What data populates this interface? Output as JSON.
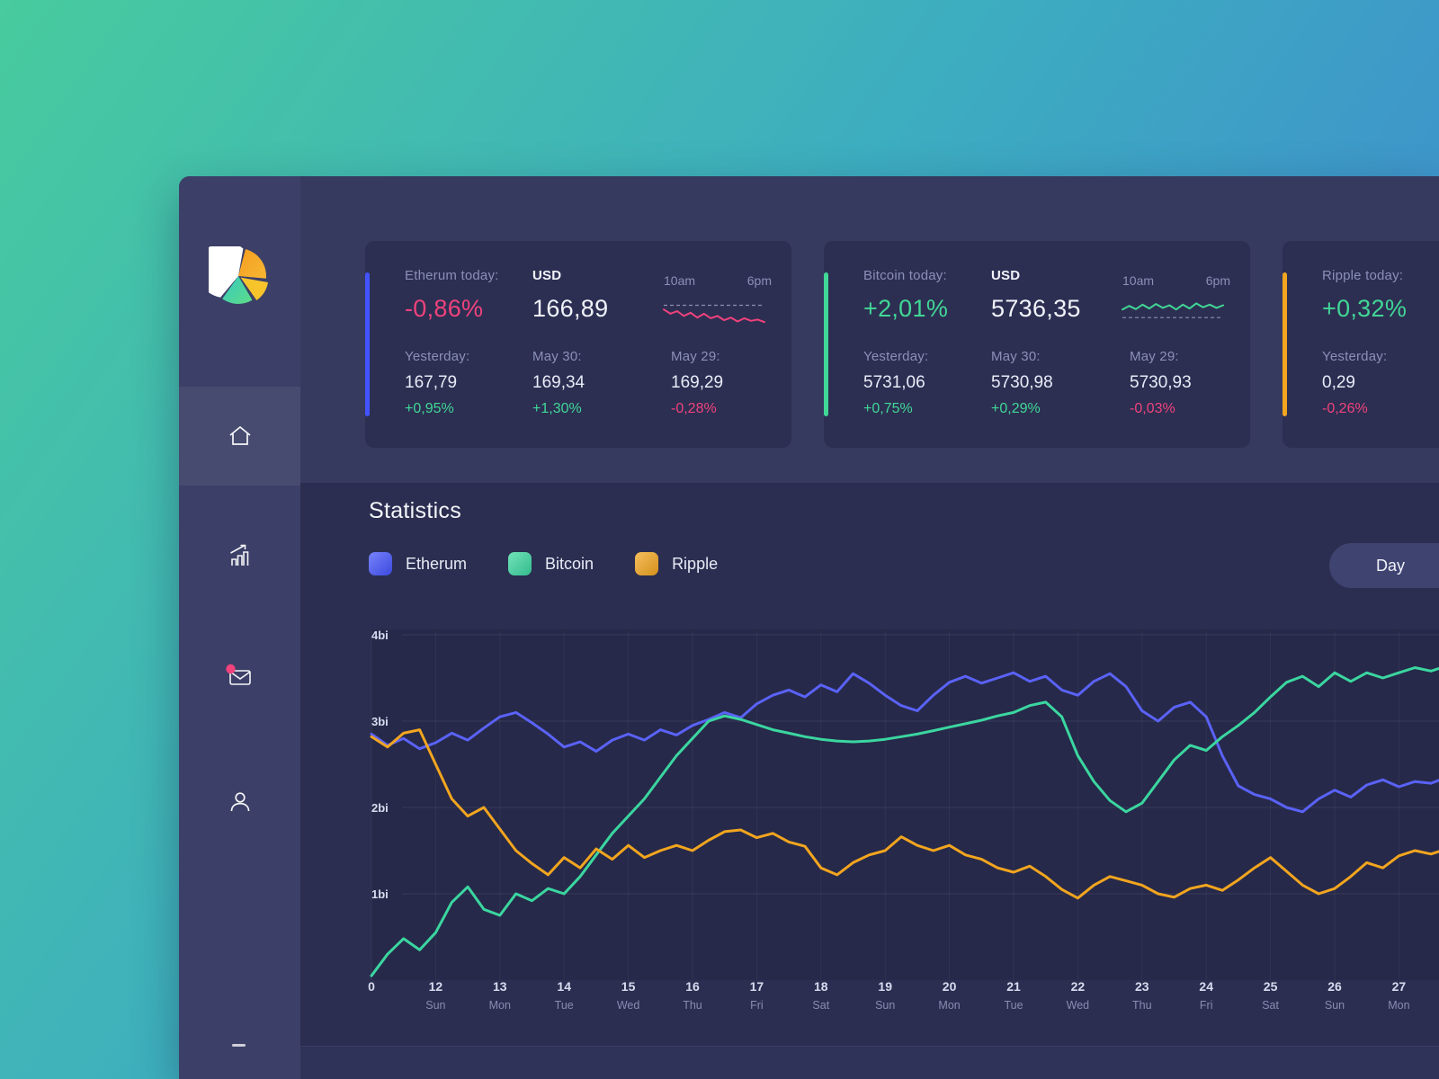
{
  "sidebar": {
    "items": [
      {
        "id": "home",
        "active": true
      },
      {
        "id": "stats",
        "active": false
      },
      {
        "id": "messages",
        "active": false,
        "has_notification": true
      },
      {
        "id": "profile",
        "active": false
      }
    ],
    "notification_color": "#f0427c"
  },
  "cards": [
    {
      "accent_color": "#4353fb",
      "title": "Etherum today:",
      "today_change": "-0,86%",
      "today_change_color": "#f0427c",
      "currency": "USD",
      "price": "166,89",
      "spark_start": "10am",
      "spark_end": "6pm",
      "spark": {
        "color": "#f0427c",
        "baseline": 0.68,
        "values": [
          0.55,
          0.42,
          0.5,
          0.35,
          0.45,
          0.3,
          0.42,
          0.28,
          0.35,
          0.22,
          0.3,
          0.18,
          0.28,
          0.2,
          0.24,
          0.16
        ]
      },
      "stats": [
        {
          "label": "Yesterday:",
          "value": "167,79",
          "change": "+0,95%",
          "change_color": "#41d796"
        },
        {
          "label": "May 30:",
          "value": "169,34",
          "change": "+1,30%",
          "change_color": "#41d796"
        },
        {
          "label": "May 29:",
          "value": "169,29",
          "change": "-0,28%",
          "change_color": "#f0427c"
        }
      ]
    },
    {
      "accent_color": "#41d796",
      "title": "Bitcoin today:",
      "today_change": "+2,01%",
      "today_change_color": "#41d796",
      "currency": "USD",
      "price": "5736,35",
      "spark_start": "10am",
      "spark_end": "6pm",
      "spark": {
        "color": "#41d796",
        "baseline": 0.3,
        "values": [
          0.55,
          0.66,
          0.56,
          0.7,
          0.58,
          0.72,
          0.6,
          0.68,
          0.55,
          0.7,
          0.58,
          0.74,
          0.62,
          0.7,
          0.6,
          0.68
        ]
      },
      "stats": [
        {
          "label": "Yesterday:",
          "value": "5731,06",
          "change": "+0,75%",
          "change_color": "#41d796"
        },
        {
          "label": "May 30:",
          "value": "5730,98",
          "change": "+0,29%",
          "change_color": "#41d796"
        },
        {
          "label": "May 29:",
          "value": "5730,93",
          "change": "-0,03%",
          "change_color": "#f0427c"
        }
      ]
    },
    {
      "accent_color": "#f2a51f",
      "title": "Ripple today:",
      "today_change": "+0,32%",
      "today_change_color": "#41d796",
      "stats": [
        {
          "label": "Yesterday:",
          "value": "0,29",
          "change": "-0,26%",
          "change_color": "#f0427c"
        }
      ]
    }
  ],
  "statistics": {
    "title": "Statistics",
    "legend": [
      {
        "label": "Etherum",
        "color": "#4353fb"
      },
      {
        "label": "Bitcoin",
        "color": "#3bd6a0"
      },
      {
        "label": "Ripple",
        "color": "#f2a51f"
      }
    ],
    "range_button": "Day"
  },
  "chart_data": {
    "type": "line",
    "title": "Statistics",
    "unit": "bi",
    "ylim": [
      0,
      4.4
    ],
    "y_ticks": [
      {
        "value": 1,
        "label": "1bi"
      },
      {
        "value": 2,
        "label": "2bi"
      },
      {
        "value": 3,
        "label": "3bi"
      },
      {
        "value": 4,
        "label": "4bi"
      }
    ],
    "x_labels": [
      "0",
      "12",
      "13",
      "14",
      "15",
      "16",
      "17",
      "18",
      "19",
      "20",
      "21",
      "22",
      "23",
      "24",
      "25",
      "26",
      "27"
    ],
    "x_sublabels": [
      "",
      "Sun",
      "Mon",
      "Tue",
      "Wed",
      "Thu",
      "Fri",
      "Sat",
      "Sun",
      "Mon",
      "Tue",
      "Wed",
      "Thu",
      "Fri",
      "Sat",
      "Sun",
      "Mon"
    ],
    "x_step": 0.25,
    "series": [
      {
        "name": "Etherum",
        "color": "#5a62f7",
        "values": [
          2.85,
          2.72,
          2.8,
          2.68,
          2.75,
          2.86,
          2.78,
          2.92,
          3.05,
          3.1,
          2.98,
          2.85,
          2.7,
          2.76,
          2.65,
          2.78,
          2.85,
          2.78,
          2.9,
          2.84,
          2.95,
          3.02,
          3.1,
          3.04,
          3.2,
          3.3,
          3.36,
          3.28,
          3.42,
          3.34,
          3.55,
          3.44,
          3.3,
          3.18,
          3.12,
          3.3,
          3.45,
          3.52,
          3.44,
          3.5,
          3.56,
          3.46,
          3.52,
          3.36,
          3.3,
          3.46,
          3.55,
          3.4,
          3.12,
          3.0,
          3.16,
          3.22,
          3.05,
          2.6,
          2.25,
          2.15,
          2.1,
          2.0,
          1.95,
          2.1,
          2.2,
          2.12,
          2.26,
          2.32,
          2.24,
          2.3,
          2.28,
          2.35
        ]
      },
      {
        "name": "Bitcoin",
        "color": "#3bd6a0",
        "values": [
          0.05,
          0.3,
          0.48,
          0.35,
          0.55,
          0.9,
          1.08,
          0.82,
          0.75,
          1.0,
          0.92,
          1.06,
          1.0,
          1.2,
          1.45,
          1.7,
          1.9,
          2.1,
          2.35,
          2.6,
          2.8,
          3.0,
          3.06,
          3.02,
          2.96,
          2.9,
          2.86,
          2.82,
          2.79,
          2.77,
          2.76,
          2.77,
          2.79,
          2.82,
          2.85,
          2.89,
          2.93,
          2.97,
          3.01,
          3.06,
          3.1,
          3.18,
          3.22,
          3.05,
          2.6,
          2.3,
          2.08,
          1.95,
          2.05,
          2.3,
          2.55,
          2.72,
          2.66,
          2.82,
          2.95,
          3.1,
          3.28,
          3.45,
          3.52,
          3.4,
          3.56,
          3.46,
          3.56,
          3.5,
          3.56,
          3.62,
          3.58,
          3.64
        ]
      },
      {
        "name": "Ripple",
        "color": "#f2a51f",
        "values": [
          2.82,
          2.7,
          2.86,
          2.9,
          2.5,
          2.1,
          1.9,
          2.0,
          1.75,
          1.5,
          1.35,
          1.22,
          1.42,
          1.3,
          1.52,
          1.4,
          1.56,
          1.42,
          1.5,
          1.56,
          1.5,
          1.62,
          1.72,
          1.74,
          1.65,
          1.7,
          1.6,
          1.55,
          1.3,
          1.22,
          1.36,
          1.45,
          1.5,
          1.66,
          1.56,
          1.5,
          1.56,
          1.45,
          1.4,
          1.3,
          1.25,
          1.32,
          1.2,
          1.05,
          0.95,
          1.1,
          1.2,
          1.15,
          1.1,
          1.0,
          0.96,
          1.06,
          1.1,
          1.04,
          1.16,
          1.3,
          1.42,
          1.26,
          1.1,
          1.0,
          1.06,
          1.2,
          1.36,
          1.3,
          1.44,
          1.5,
          1.46,
          1.52
        ]
      }
    ]
  }
}
